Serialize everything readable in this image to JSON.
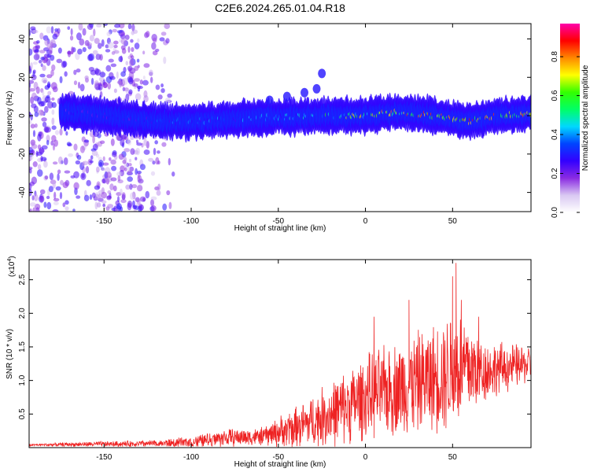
{
  "title": "C2E6.2024.265.01.04.R18",
  "chart_data": [
    {
      "type": "heatmap",
      "title": "C2E6.2024.265.01.04.R18",
      "xlabel": "Height of straight line (km)",
      "ylabel": "Frequency (Hz)",
      "xlim": [
        -193,
        95
      ],
      "ylim": [
        -50,
        48
      ],
      "xticks": [
        -150,
        -100,
        -50,
        0,
        50
      ],
      "yticks": [
        -40,
        -20,
        0,
        20,
        40
      ],
      "colorbar": {
        "label": "Normalized spectral amplitude",
        "range": [
          0,
          0.97
        ],
        "ticks": [
          0.0,
          0.2,
          0.4,
          0.6,
          0.8
        ],
        "tick_labels": [
          "0.0",
          "0.2",
          "0.4",
          "0.6",
          "0.8"
        ],
        "colormap": [
          "#ffffff",
          "#d9c8f2",
          "#8a2be2",
          "#3300ff",
          "#0044ff",
          "#00d8ff",
          "#00ff66",
          "#33ff00",
          "#ffff00",
          "#ff8800",
          "#ff0000",
          "#ff00aa"
        ]
      },
      "band": {
        "center_freq_hz": [
          {
            "x": -170,
            "y": 2
          },
          {
            "x": -120,
            "y": -3
          },
          {
            "x": -100,
            "y": -3
          },
          {
            "x": -60,
            "y": -1
          },
          {
            "x": -20,
            "y": 0
          },
          {
            "x": 0,
            "y": 0
          },
          {
            "x": 20,
            "y": 2
          },
          {
            "x": 40,
            "y": 0
          },
          {
            "x": 60,
            "y": -3
          },
          {
            "x": 75,
            "y": 0
          },
          {
            "x": 95,
            "y": 1
          }
        ],
        "peak_amplitude": [
          {
            "x": -170,
            "y": 0.35
          },
          {
            "x": -120,
            "y": 0.4
          },
          {
            "x": -80,
            "y": 0.45
          },
          {
            "x": -40,
            "y": 0.5
          },
          {
            "x": 0,
            "y": 0.8
          },
          {
            "x": 30,
            "y": 0.9
          },
          {
            "x": 60,
            "y": 0.92
          },
          {
            "x": 95,
            "y": 0.88
          }
        ],
        "noise_scatter_region_km": [
          -193,
          -110
        ]
      }
    },
    {
      "type": "line",
      "xlabel": "Height of straight line (km)",
      "ylabel": "SNR (10 * v/v)",
      "y_scale_label": "(x10",
      "y_scale_exponent": "4",
      "y_scale_suffix": ")",
      "xlim": [
        -193,
        95
      ],
      "ylim": [
        0,
        2.8
      ],
      "xticks": [
        -150,
        -100,
        -50,
        0,
        50
      ],
      "yticks": [
        0.5,
        1.0,
        1.5,
        2.0,
        2.5
      ],
      "ytick_labels": [
        "0.5",
        "1.0",
        "1.5",
        "2.0",
        "2.5"
      ],
      "series": [
        {
          "color": "#ee2222",
          "envelope": [
            {
              "x": -190,
              "mean": 0.04,
              "amp": 0.02
            },
            {
              "x": -160,
              "mean": 0.05,
              "amp": 0.04
            },
            {
              "x": -120,
              "mean": 0.06,
              "amp": 0.06
            },
            {
              "x": -100,
              "mean": 0.08,
              "amp": 0.1
            },
            {
              "x": -80,
              "mean": 0.15,
              "amp": 0.15
            },
            {
              "x": -60,
              "mean": 0.16,
              "amp": 0.15
            },
            {
              "x": -40,
              "mean": 0.3,
              "amp": 0.35
            },
            {
              "x": -20,
              "mean": 0.5,
              "amp": 0.55
            },
            {
              "x": 0,
              "mean": 0.75,
              "amp": 0.7
            },
            {
              "x": 20,
              "mean": 0.9,
              "amp": 0.8
            },
            {
              "x": 40,
              "mean": 1.05,
              "amp": 0.9
            },
            {
              "x": 52,
              "mean": 1.2,
              "amp": 1.1
            },
            {
              "x": 70,
              "mean": 1.15,
              "amp": 0.5
            },
            {
              "x": 95,
              "mean": 1.25,
              "amp": 0.3
            }
          ],
          "peaks": [
            {
              "x": 5,
              "y": 1.95
            },
            {
              "x": 25,
              "y": 2.2
            },
            {
              "x": 50,
              "y": 2.55
            },
            {
              "x": 52,
              "y": 2.75
            },
            {
              "x": 55,
              "y": 2.2
            },
            {
              "x": 65,
              "y": 1.95
            }
          ]
        }
      ]
    }
  ]
}
